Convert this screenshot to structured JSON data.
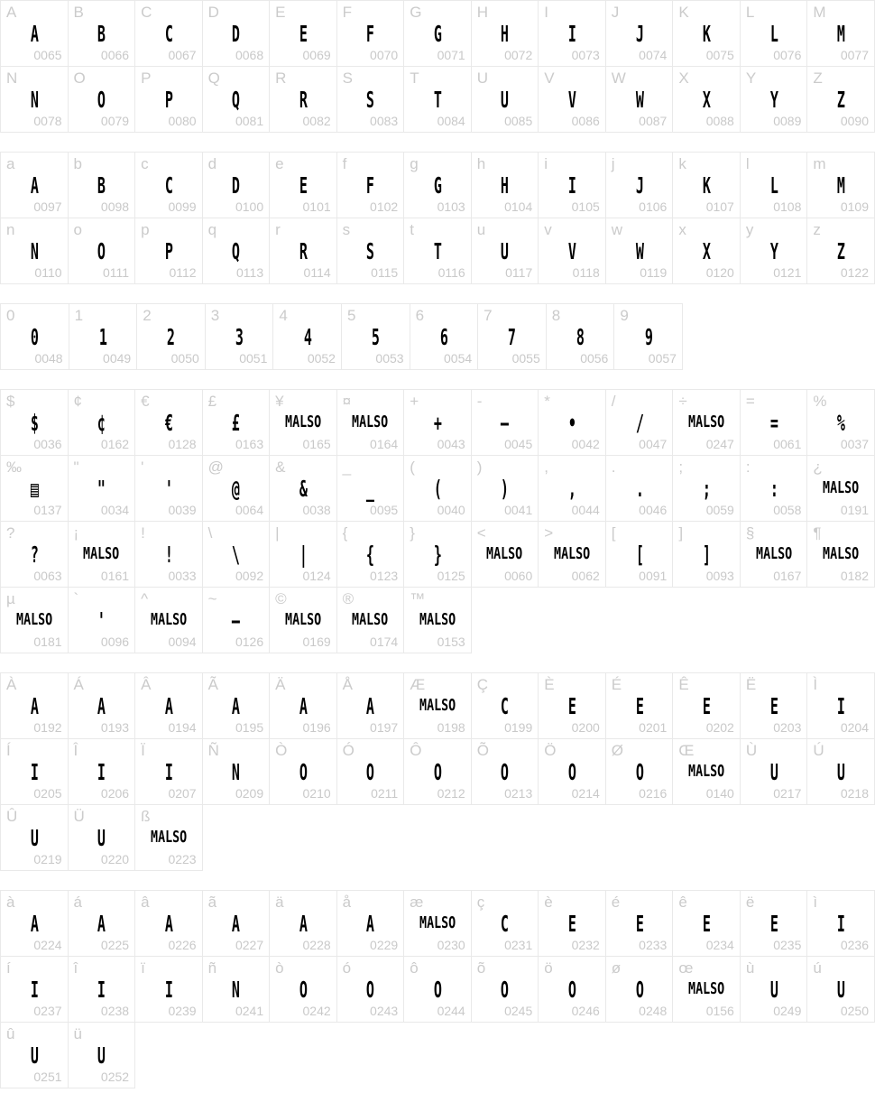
{
  "page": {
    "background": "#ffffff",
    "border_color": "#e9e9e9",
    "label_color": "#cbcbcb",
    "code_color": "#c9c9c9",
    "glyph_color": "#000000",
    "missing_glyph_fallback_text": "MALSO"
  },
  "sections": [
    {
      "name": "uppercase",
      "rows": [
        [
          {
            "label": "A",
            "glyph": "A",
            "code": "0065"
          },
          {
            "label": "B",
            "glyph": "B",
            "code": "0066"
          },
          {
            "label": "C",
            "glyph": "C",
            "code": "0067"
          },
          {
            "label": "D",
            "glyph": "D",
            "code": "0068"
          },
          {
            "label": "E",
            "glyph": "E",
            "code": "0069"
          },
          {
            "label": "F",
            "glyph": "F",
            "code": "0070"
          },
          {
            "label": "G",
            "glyph": "G",
            "code": "0071"
          },
          {
            "label": "H",
            "glyph": "H",
            "code": "0072"
          },
          {
            "label": "I",
            "glyph": "I",
            "code": "0073"
          },
          {
            "label": "J",
            "glyph": "J",
            "code": "0074"
          },
          {
            "label": "K",
            "glyph": "K",
            "code": "0075"
          },
          {
            "label": "L",
            "glyph": "L",
            "code": "0076"
          },
          {
            "label": "M",
            "glyph": "M",
            "code": "0077"
          }
        ],
        [
          {
            "label": "N",
            "glyph": "N",
            "code": "0078"
          },
          {
            "label": "O",
            "glyph": "O",
            "code": "0079"
          },
          {
            "label": "P",
            "glyph": "P",
            "code": "0080"
          },
          {
            "label": "Q",
            "glyph": "Q",
            "code": "0081"
          },
          {
            "label": "R",
            "glyph": "R",
            "code": "0082"
          },
          {
            "label": "S",
            "glyph": "S",
            "code": "0083"
          },
          {
            "label": "T",
            "glyph": "T",
            "code": "0084"
          },
          {
            "label": "U",
            "glyph": "U",
            "code": "0085"
          },
          {
            "label": "V",
            "glyph": "V",
            "code": "0086"
          },
          {
            "label": "W",
            "glyph": "W",
            "code": "0087"
          },
          {
            "label": "X",
            "glyph": "X",
            "code": "0088"
          },
          {
            "label": "Y",
            "glyph": "Y",
            "code": "0089"
          },
          {
            "label": "Z",
            "glyph": "Z",
            "code": "0090"
          }
        ]
      ]
    },
    {
      "name": "lowercase",
      "rows": [
        [
          {
            "label": "a",
            "glyph": "A",
            "code": "0097"
          },
          {
            "label": "b",
            "glyph": "B",
            "code": "0098"
          },
          {
            "label": "c",
            "glyph": "C",
            "code": "0099"
          },
          {
            "label": "d",
            "glyph": "D",
            "code": "0100"
          },
          {
            "label": "e",
            "glyph": "E",
            "code": "0101"
          },
          {
            "label": "f",
            "glyph": "F",
            "code": "0102"
          },
          {
            "label": "g",
            "glyph": "G",
            "code": "0103"
          },
          {
            "label": "h",
            "glyph": "H",
            "code": "0104"
          },
          {
            "label": "i",
            "glyph": "I",
            "code": "0105"
          },
          {
            "label": "j",
            "glyph": "J",
            "code": "0106"
          },
          {
            "label": "k",
            "glyph": "K",
            "code": "0107"
          },
          {
            "label": "l",
            "glyph": "L",
            "code": "0108"
          },
          {
            "label": "m",
            "glyph": "M",
            "code": "0109"
          }
        ],
        [
          {
            "label": "n",
            "glyph": "N",
            "code": "0110"
          },
          {
            "label": "o",
            "glyph": "O",
            "code": "0111"
          },
          {
            "label": "p",
            "glyph": "P",
            "code": "0112"
          },
          {
            "label": "q",
            "glyph": "Q",
            "code": "0113"
          },
          {
            "label": "r",
            "glyph": "R",
            "code": "0114"
          },
          {
            "label": "s",
            "glyph": "S",
            "code": "0115"
          },
          {
            "label": "t",
            "glyph": "T",
            "code": "0116"
          },
          {
            "label": "u",
            "glyph": "U",
            "code": "0117"
          },
          {
            "label": "v",
            "glyph": "V",
            "code": "0118"
          },
          {
            "label": "w",
            "glyph": "W",
            "code": "0119"
          },
          {
            "label": "x",
            "glyph": "X",
            "code": "0120"
          },
          {
            "label": "y",
            "glyph": "Y",
            "code": "0121"
          },
          {
            "label": "z",
            "glyph": "Z",
            "code": "0122"
          }
        ]
      ]
    },
    {
      "name": "digits",
      "rows": [
        [
          {
            "label": "0",
            "glyph": "0",
            "code": "0048"
          },
          {
            "label": "1",
            "glyph": "1",
            "code": "0049"
          },
          {
            "label": "2",
            "glyph": "2",
            "code": "0050"
          },
          {
            "label": "3",
            "glyph": "3",
            "code": "0051"
          },
          {
            "label": "4",
            "glyph": "4",
            "code": "0052"
          },
          {
            "label": "5",
            "glyph": "5",
            "code": "0053"
          },
          {
            "label": "6",
            "glyph": "6",
            "code": "0054"
          },
          {
            "label": "7",
            "glyph": "7",
            "code": "0055"
          },
          {
            "label": "8",
            "glyph": "8",
            "code": "0056"
          },
          {
            "label": "9",
            "glyph": "9",
            "code": "0057"
          }
        ]
      ]
    },
    {
      "name": "punctuation-symbols",
      "rows": [
        [
          {
            "label": "$",
            "glyph": "$",
            "code": "0036"
          },
          {
            "label": "¢",
            "glyph": "¢",
            "code": "0162"
          },
          {
            "label": "€",
            "glyph": "€",
            "code": "0128"
          },
          {
            "label": "£",
            "glyph": "£",
            "code": "0163"
          },
          {
            "label": "¥",
            "glyph": "MALSO",
            "code": "0165",
            "missing": true
          },
          {
            "label": "¤",
            "glyph": "MALSO",
            "code": "0164",
            "missing": true
          },
          {
            "label": "+",
            "glyph": "+",
            "code": "0043"
          },
          {
            "label": "-",
            "glyph": "–",
            "code": "0045"
          },
          {
            "label": "*",
            "glyph": "•",
            "code": "0042"
          },
          {
            "label": "/",
            "glyph": "/",
            "code": "0047"
          },
          {
            "label": "÷",
            "glyph": "MALSO",
            "code": "0247",
            "missing": true
          },
          {
            "label": "=",
            "glyph": "=",
            "code": "0061"
          },
          {
            "label": "%",
            "glyph": "%",
            "code": "0037"
          }
        ],
        [
          {
            "label": "‰",
            "glyph": "▤",
            "code": "0137"
          },
          {
            "label": "\"",
            "glyph": "\"",
            "code": "0034"
          },
          {
            "label": "'",
            "glyph": "'",
            "code": "0039"
          },
          {
            "label": "@",
            "glyph": "@",
            "code": "0064"
          },
          {
            "label": "&",
            "glyph": "&",
            "code": "0038"
          },
          {
            "label": "_",
            "glyph": "_",
            "code": "0095"
          },
          {
            "label": "(",
            "glyph": "(",
            "code": "0040"
          },
          {
            "label": ")",
            "glyph": ")",
            "code": "0041"
          },
          {
            "label": ",",
            "glyph": ",",
            "code": "0044"
          },
          {
            "label": ".",
            "glyph": ".",
            "code": "0046"
          },
          {
            "label": ";",
            "glyph": ";",
            "code": "0059"
          },
          {
            "label": ":",
            "glyph": ":",
            "code": "0058"
          },
          {
            "label": "¿",
            "glyph": "MALSO",
            "code": "0191",
            "missing": true
          }
        ],
        [
          {
            "label": "?",
            "glyph": "?",
            "code": "0063"
          },
          {
            "label": "¡",
            "glyph": "MALSO",
            "code": "0161",
            "missing": true
          },
          {
            "label": "!",
            "glyph": "!",
            "code": "0033"
          },
          {
            "label": "\\",
            "glyph": "\\",
            "code": "0092"
          },
          {
            "label": "|",
            "glyph": "|",
            "code": "0124"
          },
          {
            "label": "{",
            "glyph": "{",
            "code": "0123"
          },
          {
            "label": "}",
            "glyph": "}",
            "code": "0125"
          },
          {
            "label": "<",
            "glyph": "MALSO",
            "code": "0060",
            "missing": true
          },
          {
            "label": ">",
            "glyph": "MALSO",
            "code": "0062",
            "missing": true
          },
          {
            "label": "[",
            "glyph": "[",
            "code": "0091"
          },
          {
            "label": "]",
            "glyph": "]",
            "code": "0093"
          },
          {
            "label": "§",
            "glyph": "MALSO",
            "code": "0167",
            "missing": true
          },
          {
            "label": "¶",
            "glyph": "MALSO",
            "code": "0182",
            "missing": true
          }
        ],
        [
          {
            "label": "µ",
            "glyph": "MALSO",
            "code": "0181",
            "missing": true
          },
          {
            "label": "`",
            "glyph": "'",
            "code": "0096"
          },
          {
            "label": "^",
            "glyph": "MALSO",
            "code": "0094",
            "missing": true
          },
          {
            "label": "~",
            "glyph": "–",
            "code": "0126"
          },
          {
            "label": "©",
            "glyph": "MALSO",
            "code": "0169",
            "missing": true
          },
          {
            "label": "®",
            "glyph": "MALSO",
            "code": "0174",
            "missing": true
          },
          {
            "label": "™",
            "glyph": "MALSO",
            "code": "0153",
            "missing": true
          }
        ]
      ]
    },
    {
      "name": "uppercase-accented",
      "rows": [
        [
          {
            "label": "À",
            "glyph": "A",
            "code": "0192"
          },
          {
            "label": "Á",
            "glyph": "A",
            "code": "0193"
          },
          {
            "label": "Â",
            "glyph": "A",
            "code": "0194"
          },
          {
            "label": "Ã",
            "glyph": "A",
            "code": "0195"
          },
          {
            "label": "Ä",
            "glyph": "A",
            "code": "0196"
          },
          {
            "label": "Å",
            "glyph": "A",
            "code": "0197"
          },
          {
            "label": "Æ",
            "glyph": "MALSO",
            "code": "0198",
            "missing": true
          },
          {
            "label": "Ç",
            "glyph": "C",
            "code": "0199"
          },
          {
            "label": "È",
            "glyph": "E",
            "code": "0200"
          },
          {
            "label": "É",
            "glyph": "E",
            "code": "0201"
          },
          {
            "label": "Ê",
            "glyph": "E",
            "code": "0202"
          },
          {
            "label": "Ë",
            "glyph": "E",
            "code": "0203"
          },
          {
            "label": "Ì",
            "glyph": "I",
            "code": "0204"
          }
        ],
        [
          {
            "label": "Í",
            "glyph": "I",
            "code": "0205"
          },
          {
            "label": "Î",
            "glyph": "I",
            "code": "0206"
          },
          {
            "label": "Ï",
            "glyph": "I",
            "code": "0207"
          },
          {
            "label": "Ñ",
            "glyph": "N",
            "code": "0209"
          },
          {
            "label": "Ò",
            "glyph": "O",
            "code": "0210"
          },
          {
            "label": "Ó",
            "glyph": "O",
            "code": "0211"
          },
          {
            "label": "Ô",
            "glyph": "O",
            "code": "0212"
          },
          {
            "label": "Õ",
            "glyph": "O",
            "code": "0213"
          },
          {
            "label": "Ö",
            "glyph": "O",
            "code": "0214"
          },
          {
            "label": "Ø",
            "glyph": "O",
            "code": "0216"
          },
          {
            "label": "Œ",
            "glyph": "MALSO",
            "code": "0140",
            "missing": true
          },
          {
            "label": "Ù",
            "glyph": "U",
            "code": "0217"
          },
          {
            "label": "Ú",
            "glyph": "U",
            "code": "0218"
          }
        ],
        [
          {
            "label": "Û",
            "glyph": "U",
            "code": "0219"
          },
          {
            "label": "Ü",
            "glyph": "U",
            "code": "0220"
          },
          {
            "label": "ß",
            "glyph": "MALSO",
            "code": "0223",
            "missing": true
          }
        ]
      ]
    },
    {
      "name": "lowercase-accented",
      "rows": [
        [
          {
            "label": "à",
            "glyph": "A",
            "code": "0224"
          },
          {
            "label": "á",
            "glyph": "A",
            "code": "0225"
          },
          {
            "label": "â",
            "glyph": "A",
            "code": "0226"
          },
          {
            "label": "ã",
            "glyph": "A",
            "code": "0227"
          },
          {
            "label": "ä",
            "glyph": "A",
            "code": "0228"
          },
          {
            "label": "å",
            "glyph": "A",
            "code": "0229"
          },
          {
            "label": "æ",
            "glyph": "MALSO",
            "code": "0230",
            "missing": true
          },
          {
            "label": "ç",
            "glyph": "C",
            "code": "0231"
          },
          {
            "label": "è",
            "glyph": "E",
            "code": "0232"
          },
          {
            "label": "é",
            "glyph": "E",
            "code": "0233"
          },
          {
            "label": "ê",
            "glyph": "E",
            "code": "0234"
          },
          {
            "label": "ë",
            "glyph": "E",
            "code": "0235"
          },
          {
            "label": "ì",
            "glyph": "I",
            "code": "0236"
          }
        ],
        [
          {
            "label": "í",
            "glyph": "I",
            "code": "0237"
          },
          {
            "label": "î",
            "glyph": "I",
            "code": "0238"
          },
          {
            "label": "ï",
            "glyph": "I",
            "code": "0239"
          },
          {
            "label": "ñ",
            "glyph": "N",
            "code": "0241"
          },
          {
            "label": "ò",
            "glyph": "O",
            "code": "0242"
          },
          {
            "label": "ó",
            "glyph": "O",
            "code": "0243"
          },
          {
            "label": "ô",
            "glyph": "O",
            "code": "0244"
          },
          {
            "label": "õ",
            "glyph": "O",
            "code": "0245"
          },
          {
            "label": "ö",
            "glyph": "O",
            "code": "0246"
          },
          {
            "label": "ø",
            "glyph": "O",
            "code": "0248"
          },
          {
            "label": "œ",
            "glyph": "MALSO",
            "code": "0156",
            "missing": true
          },
          {
            "label": "ù",
            "glyph": "U",
            "code": "0249"
          },
          {
            "label": "ú",
            "glyph": "U",
            "code": "0250"
          }
        ],
        [
          {
            "label": "û",
            "glyph": "U",
            "code": "0251"
          },
          {
            "label": "ü",
            "glyph": "U",
            "code": "0252"
          }
        ]
      ]
    }
  ]
}
